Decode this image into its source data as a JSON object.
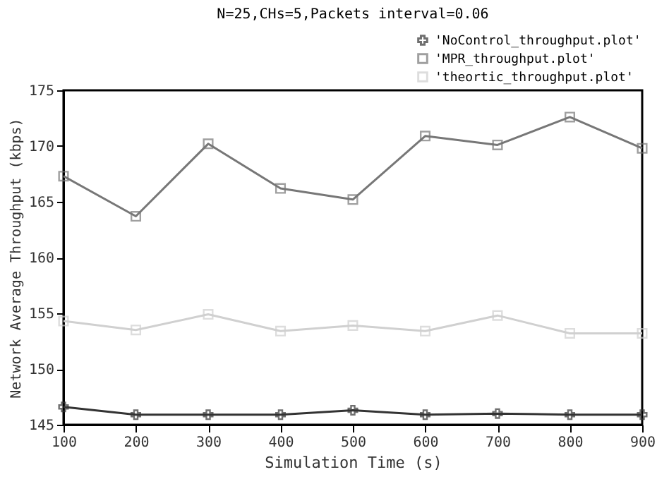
{
  "chart_data": {
    "type": "line",
    "title": "N=25,CHs=5,Packets interval=0.06",
    "xlabel": "Simulation Time (s)",
    "ylabel": "Network Average Throughput (kbps)",
    "x": [
      100,
      200,
      300,
      400,
      500,
      600,
      700,
      800,
      900
    ],
    "series": [
      {
        "name": "'NoControl_throughput.plot'",
        "color": "#333333",
        "marker": "cross",
        "values": [
          146.6,
          145.9,
          145.9,
          145.9,
          146.3,
          145.9,
          146.0,
          145.9,
          145.9
        ]
      },
      {
        "name": "'MPR_throughput.plot'",
        "color": "#777777",
        "marker": "square",
        "values": [
          167.3,
          163.7,
          170.2,
          166.2,
          165.2,
          170.9,
          170.1,
          172.6,
          169.8
        ]
      },
      {
        "name": "'theortic_throughput.plot'",
        "color": "#d0d0d0",
        "marker": "square",
        "values": [
          154.3,
          153.5,
          154.9,
          153.4,
          153.9,
          153.4,
          154.8,
          153.2,
          153.2
        ]
      }
    ],
    "xlim": [
      100,
      900
    ],
    "xticks": [
      100,
      200,
      300,
      400,
      500,
      600,
      700,
      800,
      900
    ],
    "ylim": [
      145,
      175
    ],
    "yticks": [
      145,
      150,
      155,
      160,
      165,
      170,
      175
    ],
    "grid": false,
    "legend": "top right",
    "line_style": "solid"
  }
}
